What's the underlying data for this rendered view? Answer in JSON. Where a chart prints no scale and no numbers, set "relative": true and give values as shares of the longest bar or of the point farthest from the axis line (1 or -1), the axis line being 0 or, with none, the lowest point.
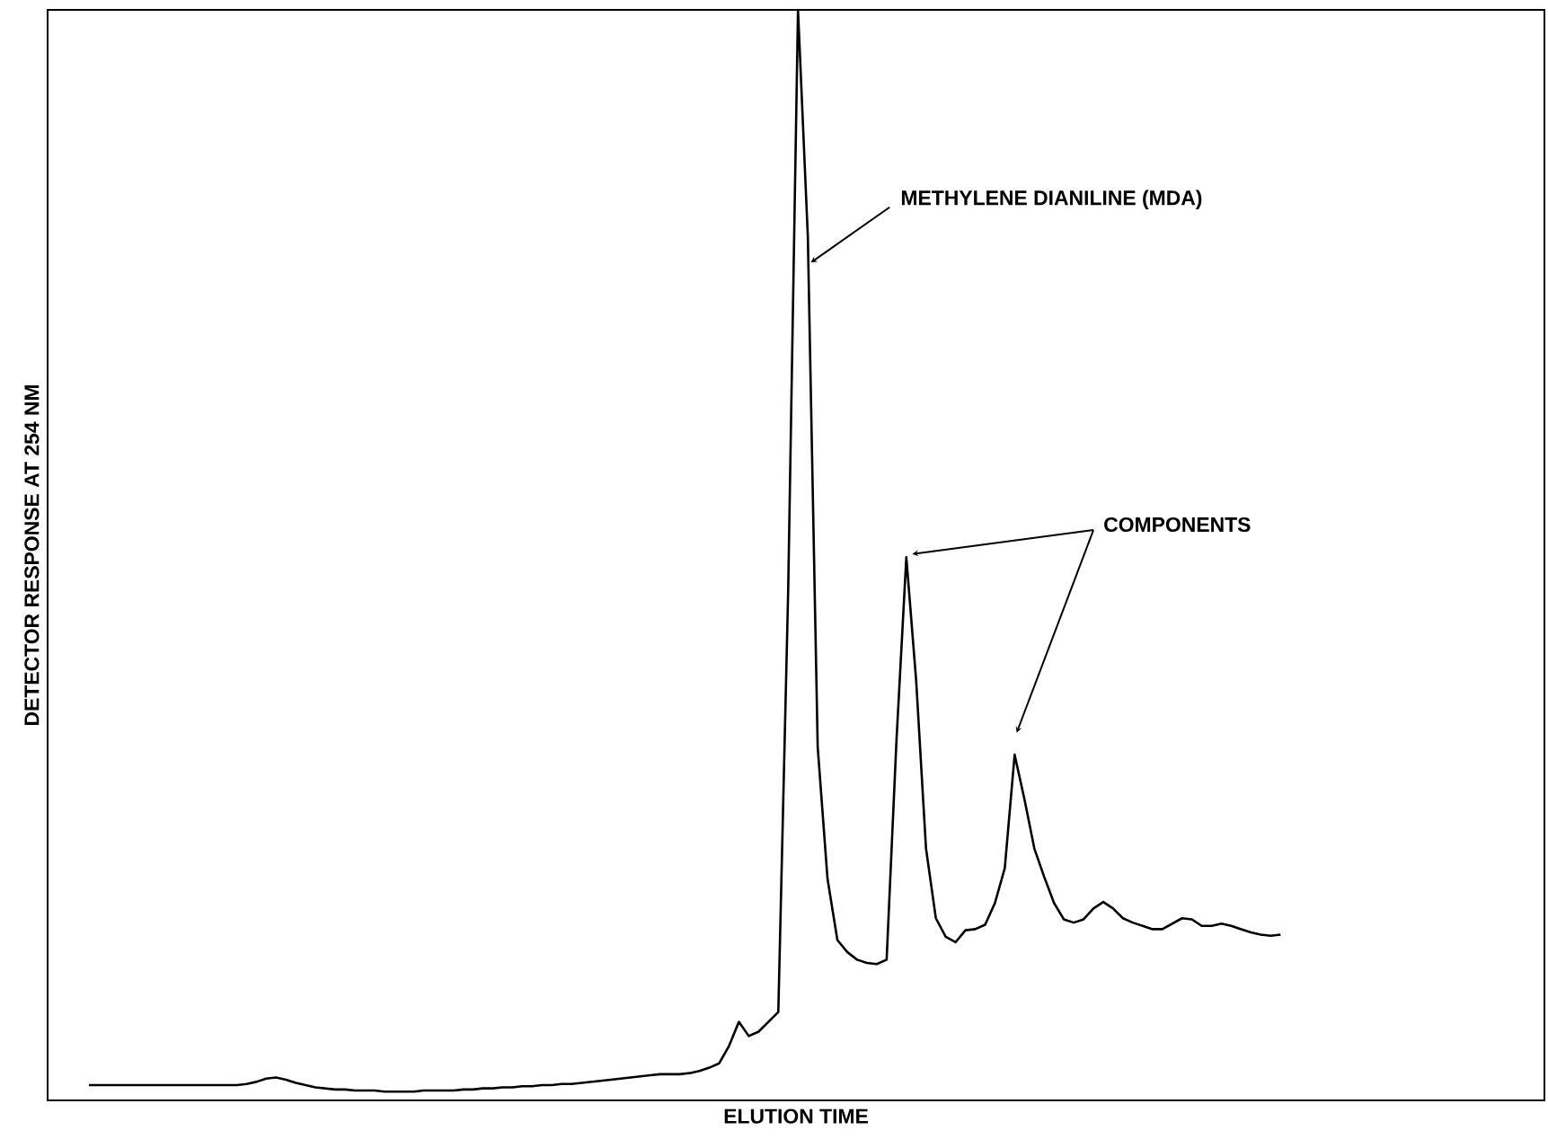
{
  "chart_data": {
    "type": "line",
    "relative": true,
    "color": "#000000",
    "xlabel": "ELUTION TIME",
    "ylabel": "DETECTOR RESPONSE AT 254 NM",
    "annotations": [
      "METHYLENE DIANILINE (MDA)",
      "COMPONENTS"
    ],
    "categories": [
      null,
      null,
      null,
      null,
      null,
      null,
      null,
      null,
      null,
      null,
      null,
      null,
      null,
      null,
      null,
      null,
      null,
      null,
      null,
      null,
      null,
      null,
      null,
      null,
      null,
      null,
      null,
      null,
      null,
      null,
      null,
      null,
      null,
      null,
      null,
      null,
      null,
      null,
      null,
      null,
      null,
      null,
      null,
      null,
      null,
      null,
      null,
      null,
      null,
      null,
      null,
      null,
      null,
      null,
      null,
      null,
      null,
      null,
      null,
      null,
      null,
      null,
      null,
      null,
      null,
      null,
      null,
      null,
      null,
      null,
      null,
      null,
      null,
      null,
      null,
      null,
      null,
      null,
      null,
      null,
      null,
      null,
      null,
      null,
      null,
      null,
      null,
      null,
      null,
      null,
      null,
      null,
      null,
      null,
      null,
      null,
      null,
      null,
      null,
      null,
      null,
      null,
      null,
      null,
      null,
      null,
      null,
      null,
      null,
      null,
      null,
      null,
      null,
      null,
      null,
      null,
      null,
      null,
      null,
      null,
      null,
      null
    ],
    "values": [
      0.014,
      0.014,
      0.014,
      0.014,
      0.014,
      0.014,
      0.014,
      0.014,
      0.014,
      0.014,
      0.014,
      0.014,
      0.014,
      0.014,
      0.014,
      0.014,
      0.015,
      0.017,
      0.02,
      0.021,
      0.019,
      0.016,
      0.014,
      0.012,
      0.011,
      0.01,
      0.01,
      0.009,
      0.009,
      0.009,
      0.008,
      0.008,
      0.008,
      0.008,
      0.009,
      0.009,
      0.009,
      0.009,
      0.01,
      0.01,
      0.011,
      0.011,
      0.012,
      0.012,
      0.013,
      0.013,
      0.014,
      0.014,
      0.015,
      0.015,
      0.016,
      0.017,
      0.018,
      0.019,
      0.02,
      0.021,
      0.022,
      0.023,
      0.024,
      0.024,
      0.024,
      0.025,
      0.027,
      0.03,
      0.034,
      0.05,
      0.072,
      0.059,
      0.063,
      0.072,
      0.081,
      0.466,
      1.0,
      0.792,
      0.324,
      0.203,
      0.147,
      0.136,
      0.129,
      0.126,
      0.125,
      0.129,
      0.33,
      0.498,
      0.385,
      0.231,
      0.167,
      0.15,
      0.145,
      0.156,
      0.157,
      0.161,
      0.181,
      0.213,
      0.317,
      0.276,
      0.231,
      0.205,
      0.181,
      0.166,
      0.163,
      0.166,
      0.176,
      0.182,
      0.176,
      0.167,
      0.163,
      0.16,
      0.157,
      0.157,
      0.162,
      0.167,
      0.166,
      0.16,
      0.16,
      0.162,
      0.16,
      0.157,
      0.154,
      0.152,
      0.151,
      0.152
    ]
  }
}
